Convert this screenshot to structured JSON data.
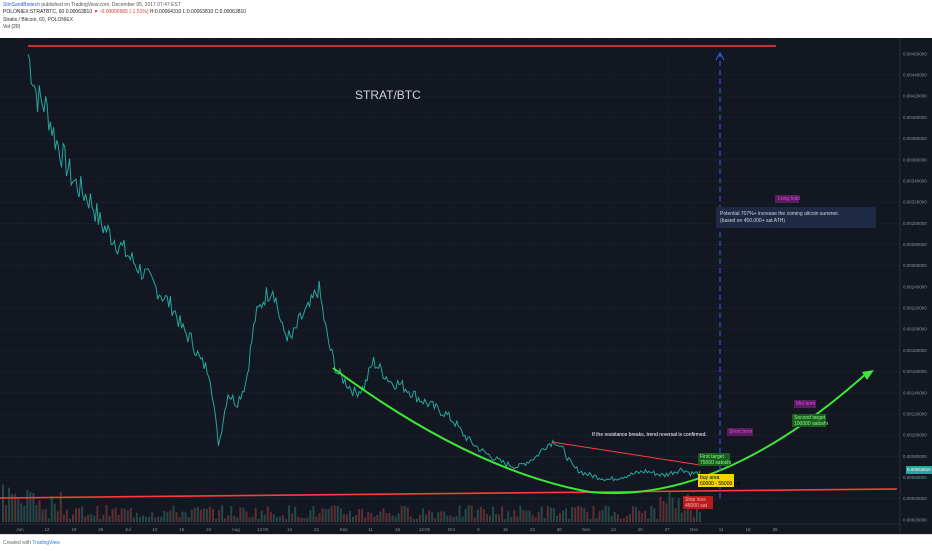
{
  "header": {
    "user": "StinSandBiotech",
    "published": "published on TradingView.com, December 05, 2017 07:47 EST",
    "symbol_line": "POLONIEX:STRATBTC, 60  0.00063810",
    "change": "▼ -0.00000965 (-1.51%)",
    "ohlc": "H:0.00064310  L:0.00063810  C:0.00063810",
    "series": "Stratis / Bitcoin, 60, POLONIEX",
    "volume": "Vol (20)"
  },
  "footer": {
    "created": "Created with",
    "brand": "TradingView"
  },
  "chart_data": {
    "type": "line",
    "title": "STRAT/BTC",
    "x_ticks": [
      "Jun",
      "12",
      "19",
      "26",
      "Jul",
      "10",
      "18",
      "24",
      "Aug",
      "12:00",
      "14",
      "21",
      "Sep",
      "11",
      "18",
      "12:00",
      "Oct",
      "9",
      "16",
      "23",
      "30",
      "Nov",
      "13",
      "20",
      "27",
      "Dec",
      "11",
      "18",
      "25"
    ],
    "y_ticks": [
      "0.00460000",
      "0.00440000",
      "0.00420000",
      "0.00400000",
      "0.00380000",
      "0.00360000",
      "0.00340000",
      "0.00320000",
      "0.00300000",
      "0.00280000",
      "0.00260000",
      "0.00240000",
      "0.00220000",
      "0.00200000",
      "0.00180000",
      "0.00160000",
      "0.00140000",
      "0.00120000",
      "0.00100000",
      "0.00080000",
      "0.00060000",
      "0.00040000",
      "0.00020000"
    ],
    "y_range": [
      0.00018,
      0.00475
    ],
    "last_price": "0.00063810",
    "price_path": [
      0.0046,
      0.0042,
      0.0041,
      0.0038,
      0.0036,
      0.0034,
      0.0033,
      0.0032,
      0.003,
      0.0029,
      0.0028,
      0.0027,
      0.0026,
      0.0025,
      0.0024,
      0.0023,
      0.0022,
      0.002,
      0.0019,
      0.0017,
      0.0016,
      0.0009,
      0.0014,
      0.0013,
      0.0015,
      0.0021,
      0.0023,
      0.0024,
      0.002,
      0.0019,
      0.0021,
      0.0022,
      0.0024,
      0.0019,
      0.0016,
      0.0015,
      0.0014,
      0.00145,
      0.0017,
      0.0016,
      0.0015,
      0.00148,
      0.00142,
      0.00135,
      0.0013,
      0.00125,
      0.0012,
      0.00112,
      0.001,
      0.00092,
      0.00085,
      0.0008,
      0.00075,
      0.00072,
      0.0007,
      0.00075,
      0.0008,
      0.0009,
      0.00095,
      0.00085,
      0.0007,
      0.00065,
      0.00062,
      0.0006,
      0.00058,
      0.0006,
      0.00062,
      0.00064,
      0.00066,
      0.00064,
      0.00062,
      0.00065,
      0.00068,
      0.00064,
      0.00064
    ],
    "resistance_high": 0.00462,
    "support": 0.00058,
    "annotations": [
      {
        "text": "Potential 707%+ increase the coming altcoin summer.",
        "color": "#d1d4dc"
      },
      {
        "text": "(based on 450.000+ sat ATH)",
        "color": "#d1d4dc"
      },
      {
        "text": "If the resistance breaks, trend reversal is confirmed.",
        "color": "#ffffff"
      },
      {
        "text": "Long hold",
        "color": "#e040fb"
      },
      {
        "text": "Mid term",
        "color": "#e040fb"
      },
      {
        "text": "Short term",
        "color": "#e040fb"
      },
      {
        "text": "Second target",
        "color": "#4caf50"
      },
      {
        "text": "100000 satoshi",
        "color": "#4caf50"
      },
      {
        "text": "First target",
        "color": "#4caf50"
      },
      {
        "text": "75000 satoshi",
        "color": "#4caf50"
      },
      {
        "text": "buy area",
        "color": "#000000"
      },
      {
        "text": "60000 - 55000 sat",
        "color": "#000000"
      },
      {
        "text": "Stop loss",
        "color": "#ff5252"
      },
      {
        "text": "45000 sat",
        "color": "#ff5252"
      }
    ]
  }
}
